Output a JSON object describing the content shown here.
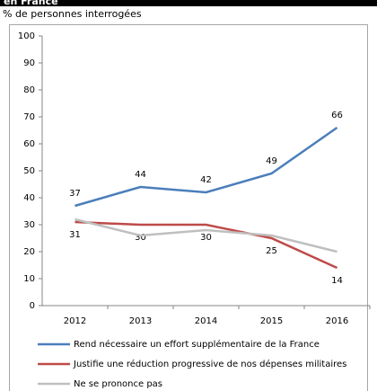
{
  "chart_data": {
    "type": "line",
    "title": "en France",
    "subtitle": "% de personnes interrogées",
    "categories": [
      "2012",
      "2013",
      "2014",
      "2015",
      "2016"
    ],
    "series": [
      {
        "name": "Rend nécessaire un effort supplémentaire de la France",
        "color": "#4a7ebb",
        "values": [
          37,
          44,
          42,
          49,
          66
        ],
        "data_labels": "above"
      },
      {
        "name": "Justifie une réduction progressive de nos dépenses militaires",
        "color": "#be4b48",
        "values": [
          31,
          30,
          30,
          25,
          14
        ],
        "data_labels": "below"
      },
      {
        "name": "Ne se prononce pas",
        "color": "#bfbfbf",
        "values": [
          32,
          26,
          28,
          26,
          20
        ]
      }
    ],
    "ylim": [
      0,
      100
    ],
    "yticks": [
      0,
      10,
      20,
      30,
      40,
      50,
      60,
      70,
      80,
      90,
      100
    ],
    "grid": false,
    "legend": "bottom"
  }
}
